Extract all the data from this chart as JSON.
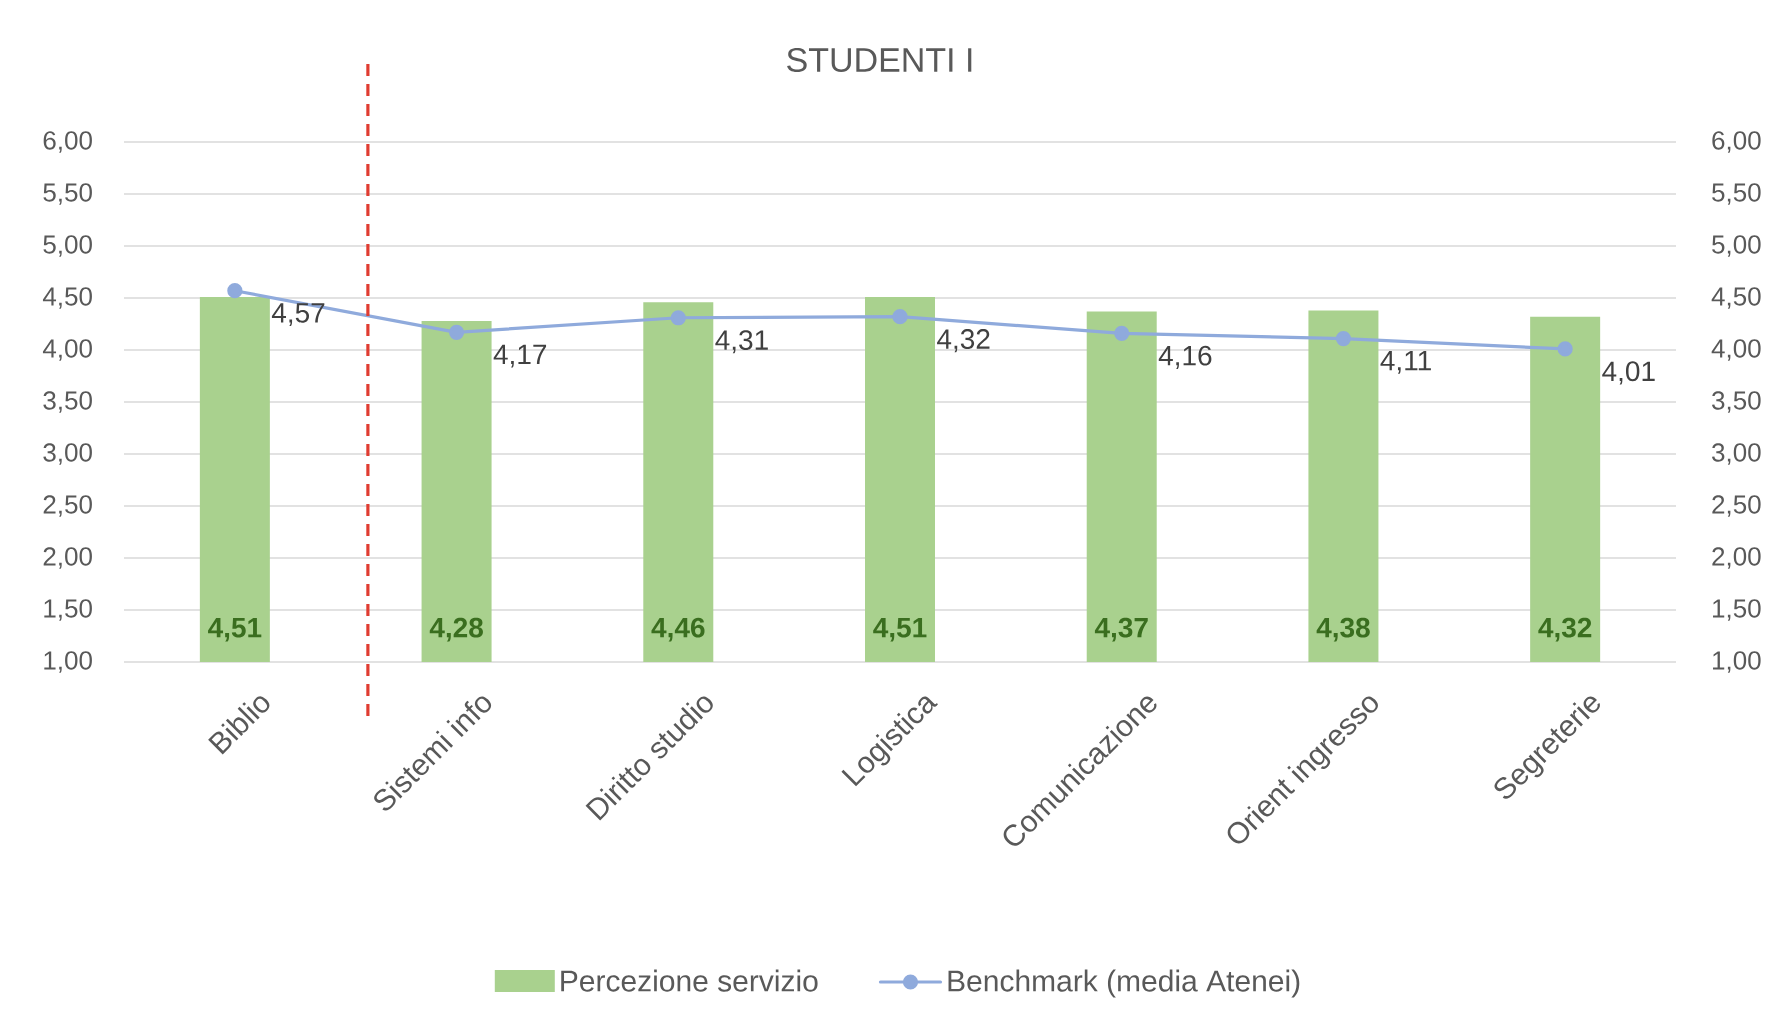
{
  "chart_data": {
    "type": "bar",
    "title": "STUDENTI I",
    "categories": [
      "Biblio",
      "Sistemi info",
      "Diritto studio",
      "Logistica",
      "Comunicazione",
      "Orient ingresso",
      "Segreterie"
    ],
    "series": [
      {
        "name": "Percezione servizio",
        "color": "#a9d18e",
        "values": [
          4.51,
          4.28,
          4.46,
          4.51,
          4.37,
          4.38,
          4.32
        ],
        "value_labels": [
          "4,51",
          "4,28",
          "4,46",
          "4,51",
          "4,37",
          "4,38",
          "4,32"
        ]
      },
      {
        "name": "Benchmark (media Atenei)",
        "type": "line",
        "axis": "y2",
        "color": "#8faadc",
        "values": [
          4.57,
          4.17,
          4.31,
          4.32,
          4.16,
          4.11,
          4.01
        ],
        "value_labels": [
          "4,57",
          "4,17",
          "4,31",
          "4,32",
          "4,16",
          "4,11",
          "4,01"
        ]
      }
    ],
    "ylim": [
      1,
      6
    ],
    "yticks": [
      {
        "value": 1,
        "label": "1,00"
      },
      {
        "value": 1.5,
        "label": "1,50"
      },
      {
        "value": 2,
        "label": "2,00"
      },
      {
        "value": 2.5,
        "label": "2,50"
      },
      {
        "value": 3,
        "label": "3,00"
      },
      {
        "value": 3.5,
        "label": "3,50"
      },
      {
        "value": 4,
        "label": "4,00"
      },
      {
        "value": 4.5,
        "label": "4,50"
      },
      {
        "value": 5,
        "label": "5,00"
      },
      {
        "value": 5.5,
        "label": "5,50"
      },
      {
        "value": 6,
        "label": "6,00"
      }
    ],
    "y2lim": [
      1,
      6
    ],
    "y2ticks": [
      {
        "value": 1,
        "label": "1,00"
      },
      {
        "value": 1.5,
        "label": "1,50"
      },
      {
        "value": 2,
        "label": "2,00"
      },
      {
        "value": 2.5,
        "label": "2,50"
      },
      {
        "value": 3,
        "label": "3,00"
      },
      {
        "value": 3.5,
        "label": "3,50"
      },
      {
        "value": 4,
        "label": "4,00"
      },
      {
        "value": 4.5,
        "label": "4,50"
      },
      {
        "value": 5,
        "label": "5,00"
      },
      {
        "value": 5.5,
        "label": "5,50"
      },
      {
        "value": 6,
        "label": "6,00"
      }
    ],
    "grid": "y",
    "legend": "bottom",
    "marker": "circle"
  }
}
